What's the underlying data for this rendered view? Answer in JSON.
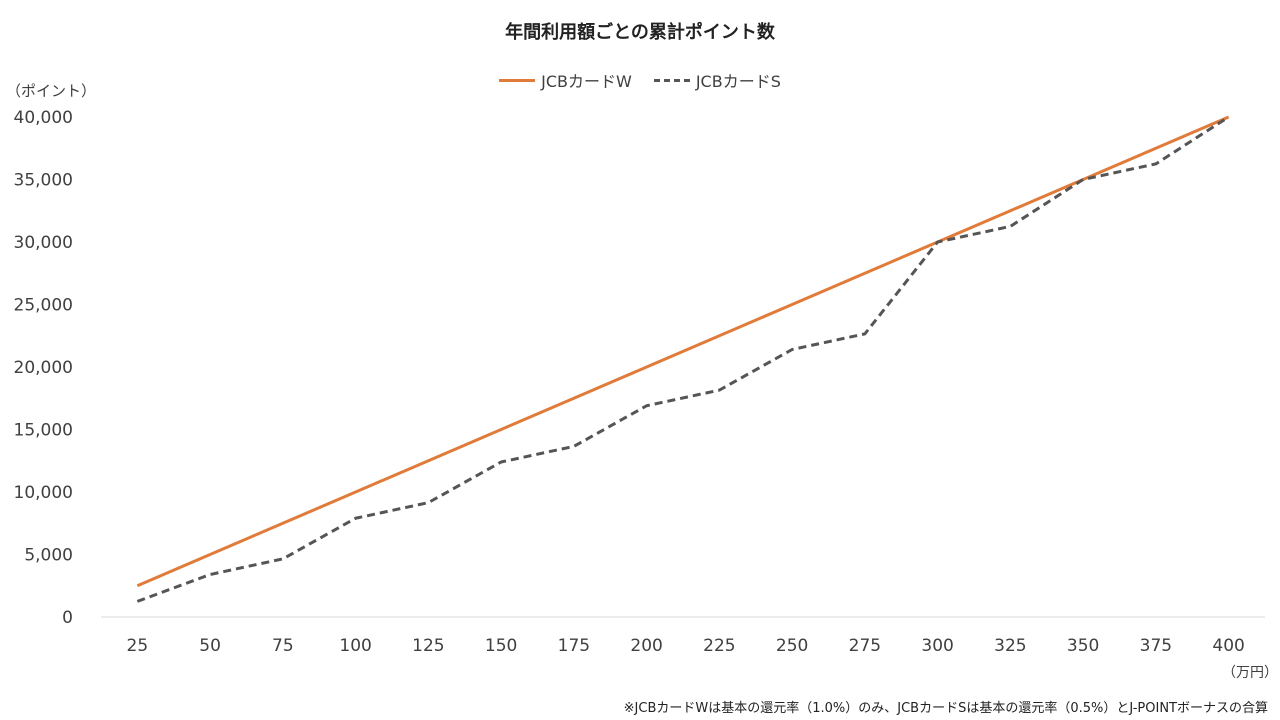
{
  "chart_data": {
    "type": "line",
    "title": "年間利用額ごとの累計ポイント数",
    "ylabel": "（ポイント）",
    "xlabel": "（万円）",
    "ylim": [
      0,
      40000
    ],
    "yticks": [
      0,
      5000,
      10000,
      15000,
      20000,
      25000,
      30000,
      35000,
      40000
    ],
    "ytick_labels": [
      "0",
      "5,000",
      "10,000",
      "15,000",
      "20,000",
      "25,000",
      "30,000",
      "35,000",
      "40,000"
    ],
    "categories": [
      "25",
      "50",
      "75",
      "100",
      "125",
      "150",
      "175",
      "200",
      "225",
      "250",
      "275",
      "300",
      "325",
      "350",
      "375",
      "400"
    ],
    "grid": false,
    "legend_position": "top",
    "series": [
      {
        "name": "JCBカードW",
        "color": "#E07B39",
        "style": "solid",
        "values": [
          2500,
          5000,
          7500,
          10000,
          12500,
          15000,
          17500,
          20000,
          22500,
          25000,
          27500,
          30000,
          32500,
          35000,
          37500,
          40000
        ]
      },
      {
        "name": "JCBカードS",
        "color": "#555555",
        "style": "dashed",
        "values": [
          1250,
          3400,
          4650,
          7900,
          9150,
          12400,
          13650,
          16900,
          18150,
          21400,
          22650,
          30000,
          31250,
          35000,
          36250,
          40000
        ]
      }
    ],
    "note": "※JCBカードWは基本の還元率（1.0%）のみ、JCBカードSは基本の還元率（0.5%）とJ-POINTボーナスの合算"
  }
}
